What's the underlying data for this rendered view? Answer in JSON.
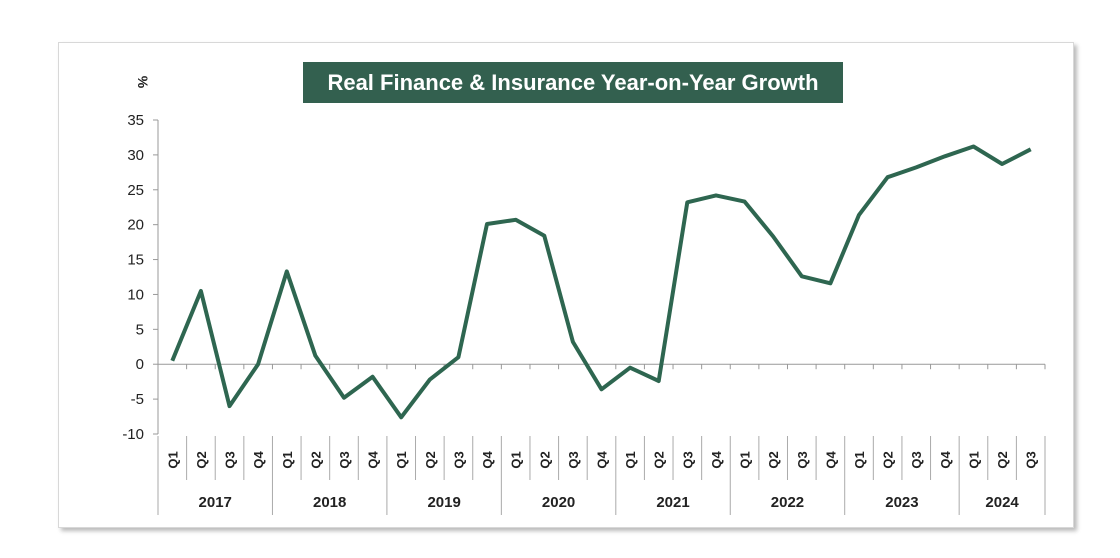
{
  "chart_data": {
    "type": "line",
    "title": "Real Finance & Insurance Year-on-Year Growth",
    "ylabel": "%",
    "xlabel": "",
    "ylim": [
      -10,
      35
    ],
    "yticks": [
      -10,
      -5,
      0,
      5,
      10,
      15,
      20,
      25,
      30,
      35
    ],
    "grid": false,
    "legend": "none",
    "line_color": "#2e6650",
    "title_bg": "#33604f",
    "years": [
      {
        "label": "2017",
        "quarters": [
          "Q1",
          "Q2",
          "Q3",
          "Q4"
        ]
      },
      {
        "label": "2018",
        "quarters": [
          "Q1",
          "Q2",
          "Q3",
          "Q4"
        ]
      },
      {
        "label": "2019",
        "quarters": [
          "Q1",
          "Q2",
          "Q3",
          "Q4"
        ]
      },
      {
        "label": "2020",
        "quarters": [
          "Q1",
          "Q2",
          "Q3",
          "Q4"
        ]
      },
      {
        "label": "2021",
        "quarters": [
          "Q1",
          "Q2",
          "Q3",
          "Q4"
        ]
      },
      {
        "label": "2022",
        "quarters": [
          "Q1",
          "Q2",
          "Q3",
          "Q4"
        ]
      },
      {
        "label": "2023",
        "quarters": [
          "Q1",
          "Q2",
          "Q3",
          "Q4"
        ]
      },
      {
        "label": "2024",
        "quarters": [
          "Q1",
          "Q2",
          "Q3"
        ]
      }
    ],
    "values": [
      0.5,
      10.5,
      -6.0,
      0.0,
      13.3,
      1.2,
      -4.8,
      -1.8,
      -7.6,
      -2.2,
      1.0,
      20.1,
      20.7,
      18.4,
      3.2,
      -3.6,
      -0.5,
      -2.4,
      23.2,
      24.2,
      23.3,
      18.3,
      12.6,
      11.6,
      21.4,
      26.8,
      28.2,
      29.8,
      31.2,
      28.7,
      30.8
    ]
  }
}
